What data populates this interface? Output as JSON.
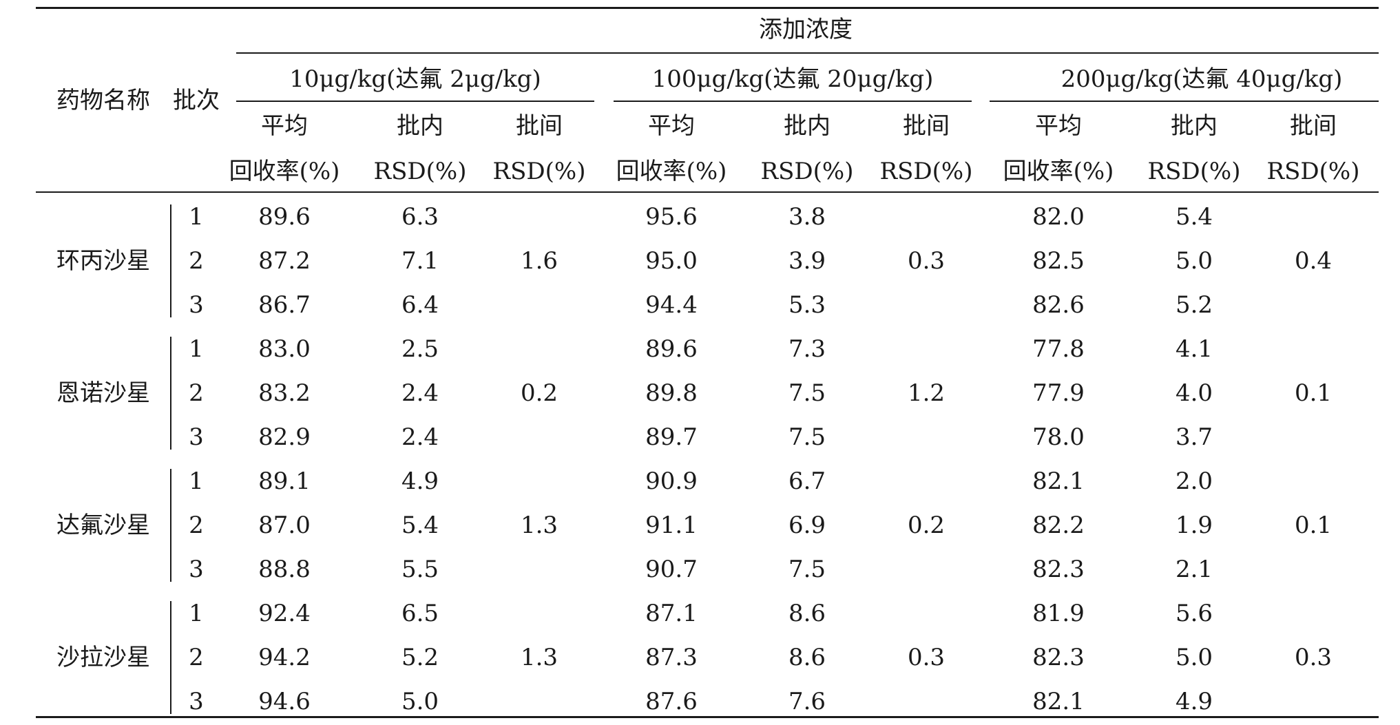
{
  "table": {
    "col_drug_name": "药物名称",
    "col_batch": "批次",
    "spike_concentration_label": "添加浓度",
    "levels": [
      {
        "label": "10μg/kg(达氟 2μg/kg)",
        "rsd_between": [
          "1.6",
          "0.2",
          "1.3",
          "1.3"
        ]
      },
      {
        "label": "100μg/kg(达氟 20μg/kg)",
        "rsd_between": [
          "0.3",
          "1.2",
          "0.2",
          "0.3"
        ]
      },
      {
        "label": "200μg/kg(达氟 40μg/kg)",
        "rsd_between": [
          "0.4",
          "0.1",
          "0.1",
          "0.3"
        ]
      }
    ],
    "sub_headers": {
      "mean_line1": "平均",
      "mean_line2": "回收率(%)",
      "within_line1": "批内",
      "within_line2": "RSD(%)",
      "between_line1": "批间",
      "between_line2": "RSD(%)"
    },
    "drugs": [
      {
        "name": "环丙沙星",
        "rows": [
          {
            "batch": "1",
            "values": [
              "89.6",
              "6.3",
              "95.6",
              "3.8",
              "82.0",
              "5.4"
            ]
          },
          {
            "batch": "2",
            "values": [
              "87.2",
              "7.1",
              "95.0",
              "3.9",
              "82.5",
              "5.0"
            ]
          },
          {
            "batch": "3",
            "values": [
              "86.7",
              "6.4",
              "94.4",
              "5.3",
              "82.6",
              "5.2"
            ]
          }
        ]
      },
      {
        "name": "恩诺沙星",
        "rows": [
          {
            "batch": "1",
            "values": [
              "83.0",
              "2.5",
              "89.6",
              "7.3",
              "77.8",
              "4.1"
            ]
          },
          {
            "batch": "2",
            "values": [
              "83.2",
              "2.4",
              "89.8",
              "7.5",
              "77.9",
              "4.0"
            ]
          },
          {
            "batch": "3",
            "values": [
              "82.9",
              "2.4",
              "89.7",
              "7.5",
              "78.0",
              "3.7"
            ]
          }
        ]
      },
      {
        "name": "达氟沙星",
        "rows": [
          {
            "batch": "1",
            "values": [
              "89.1",
              "4.9",
              "90.9",
              "6.7",
              "82.1",
              "2.0"
            ]
          },
          {
            "batch": "2",
            "values": [
              "87.0",
              "5.4",
              "91.1",
              "6.9",
              "82.2",
              "1.9"
            ]
          },
          {
            "batch": "3",
            "values": [
              "88.8",
              "5.5",
              "90.7",
              "7.5",
              "82.3",
              "2.1"
            ]
          }
        ]
      },
      {
        "name": "沙拉沙星",
        "rows": [
          {
            "batch": "1",
            "values": [
              "92.4",
              "6.5",
              "87.1",
              "8.6",
              "81.9",
              "5.6"
            ]
          },
          {
            "batch": "2",
            "values": [
              "94.2",
              "5.2",
              "87.3",
              "8.6",
              "82.3",
              "5.0"
            ]
          },
          {
            "batch": "3",
            "values": [
              "94.6",
              "5.0",
              "87.6",
              "7.6",
              "82.1",
              "4.9"
            ]
          }
        ]
      }
    ]
  }
}
